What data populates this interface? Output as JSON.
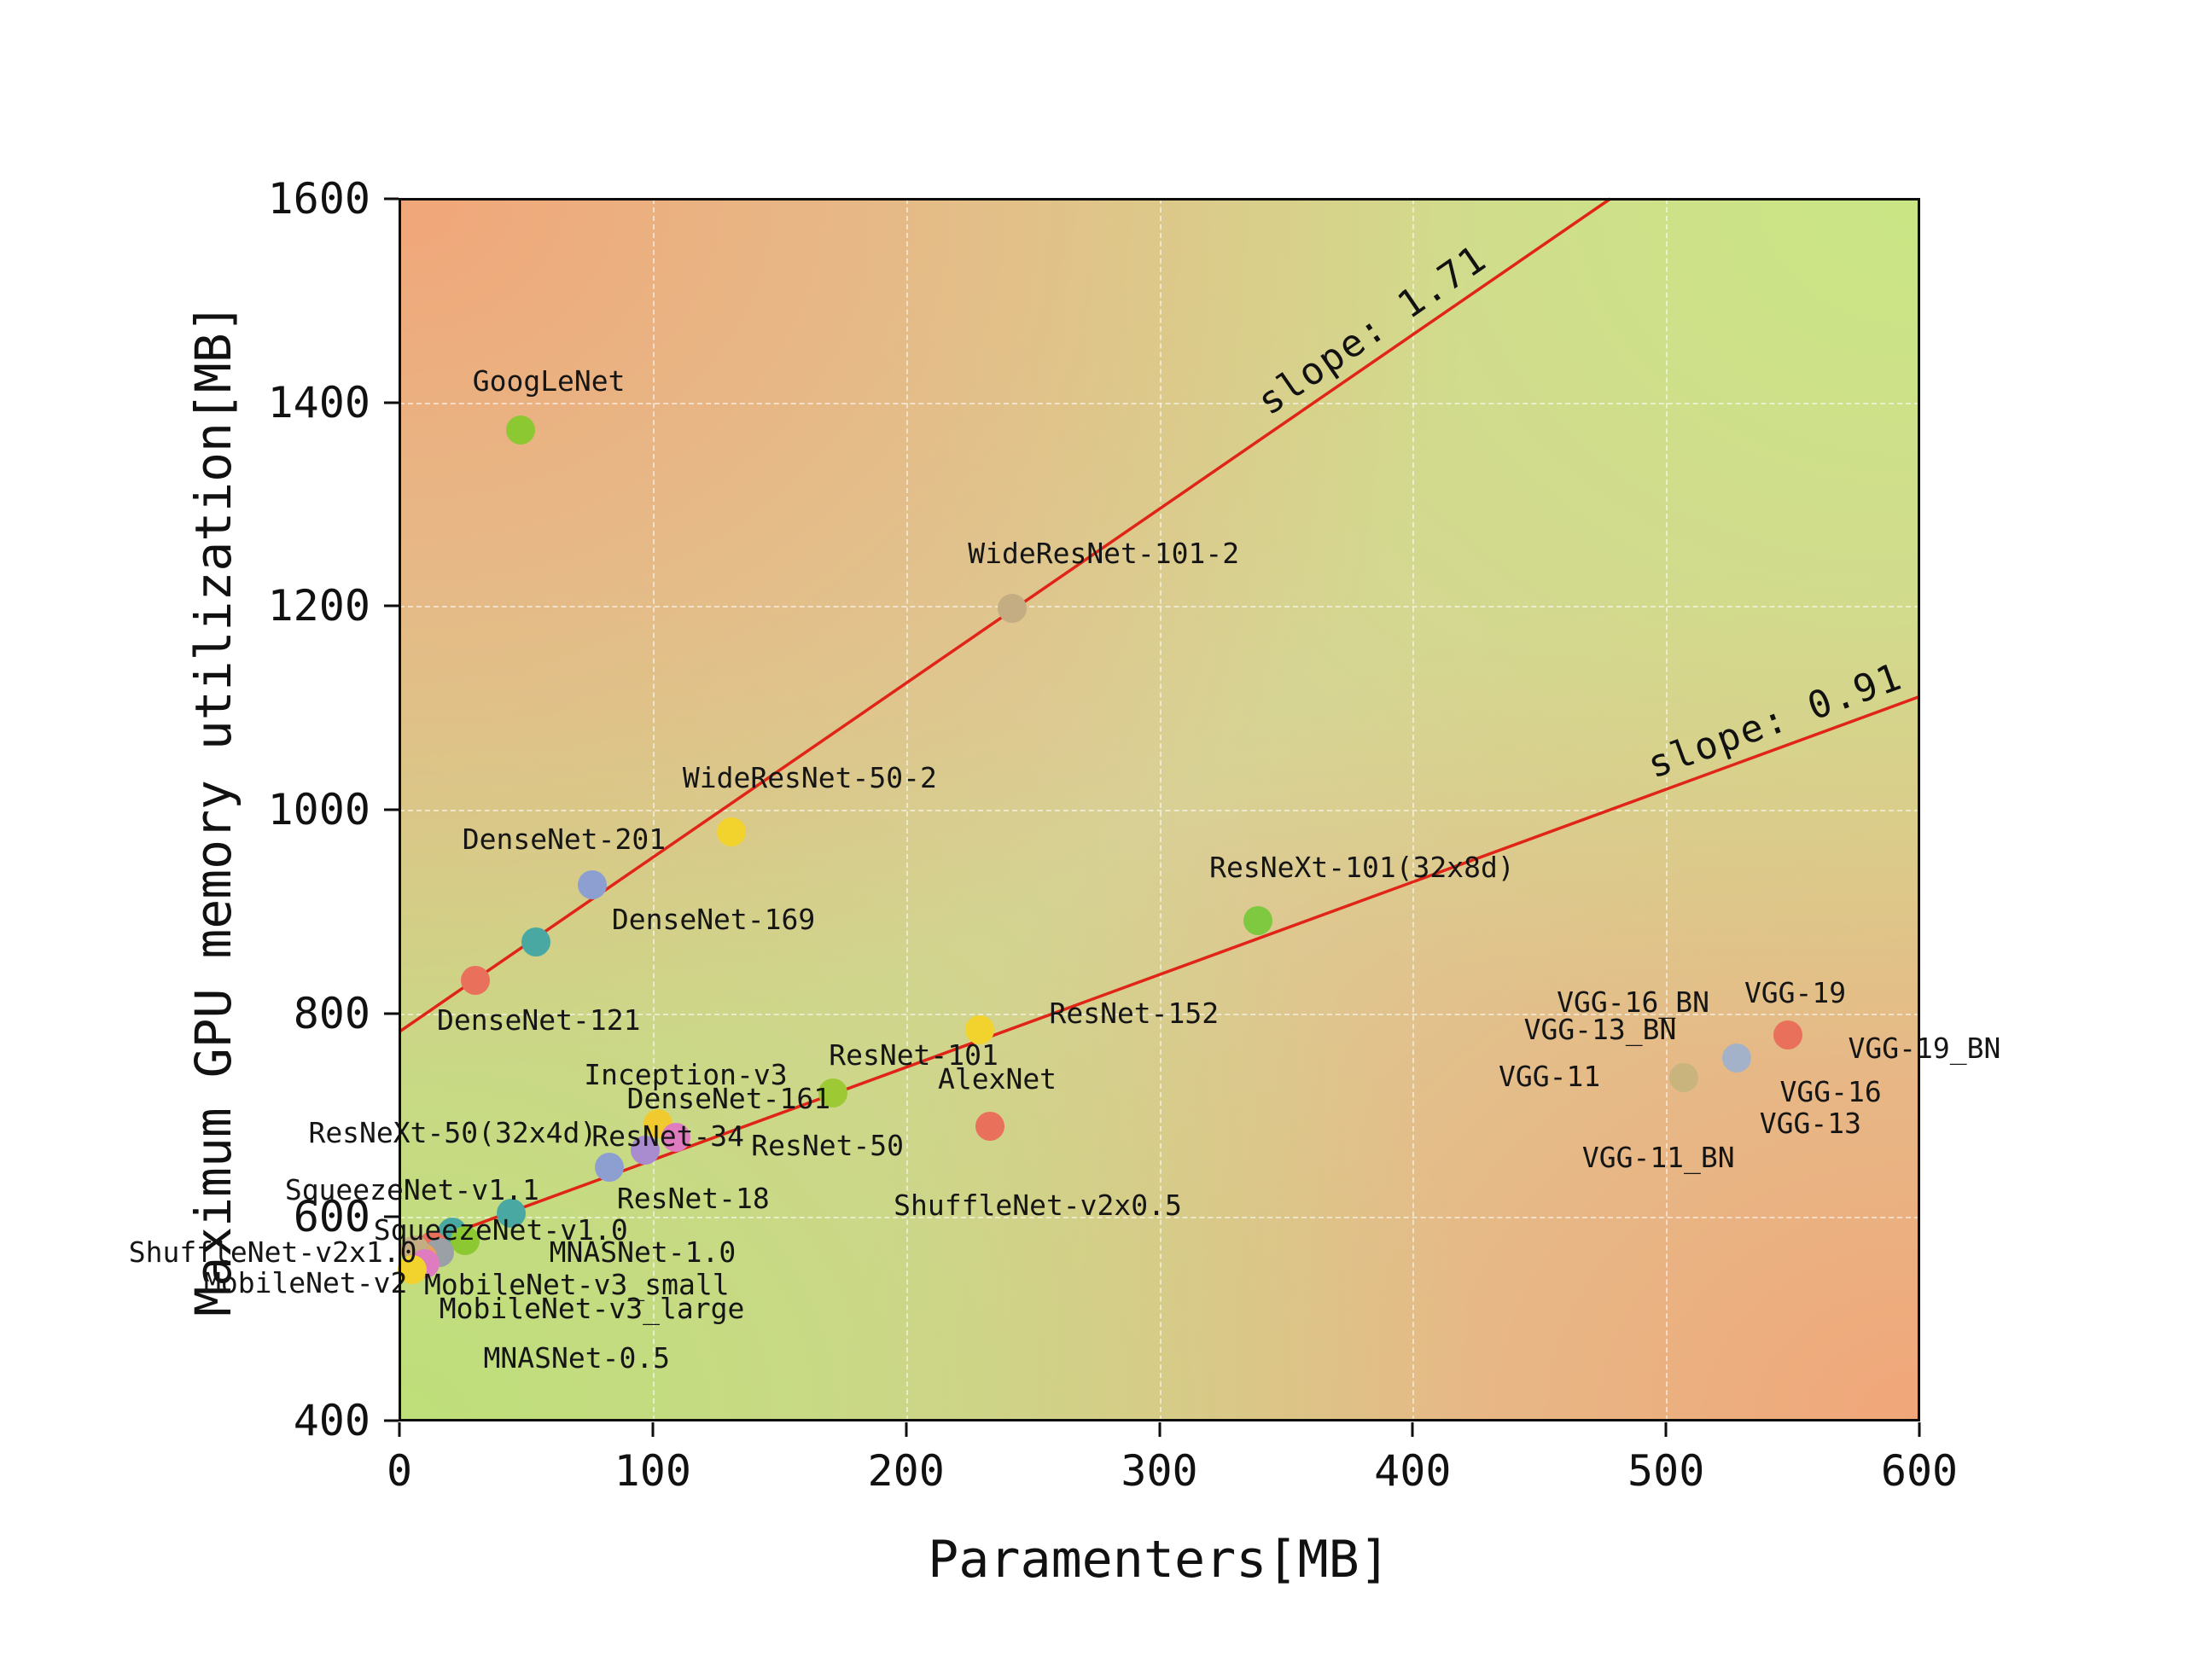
{
  "figure": {
    "background": "#ffffff"
  },
  "chart_data": {
    "type": "scatter",
    "title": "",
    "xlabel": "Paramenters[MB]",
    "ylabel": "Maximum GPU memory utilization[MB]",
    "xlim": [
      0,
      600
    ],
    "ylim": [
      400,
      1600
    ],
    "xticks": [
      0,
      100,
      200,
      300,
      400,
      500,
      600
    ],
    "yticks": [
      400,
      600,
      800,
      1000,
      1200,
      1400,
      1600
    ],
    "grid": true,
    "legend": "none",
    "background_corners": {
      "top_left": "#f2a478",
      "top_right": "#c9e783",
      "bottom_left": "#bce078",
      "bottom_right": "#f2a478",
      "center": "#d9d096"
    },
    "points": [
      {
        "name": "GoogLeNet",
        "x": 48,
        "y": 1373,
        "color": "#8cc832"
      },
      {
        "name": "WideResNet-101-2",
        "x": 242,
        "y": 1198,
        "color": "#c4ac83"
      },
      {
        "name": "WideResNet-50-2",
        "x": 131,
        "y": 978,
        "color": "#f2d32e"
      },
      {
        "name": "DenseNet-201",
        "x": 76,
        "y": 926,
        "color": "#8d9fd1"
      },
      {
        "name": "DenseNet-169",
        "x": 54,
        "y": 870,
        "color": "#49a8a1"
      },
      {
        "name": "DenseNet-121",
        "x": 30,
        "y": 832,
        "color": "#e9705a"
      },
      {
        "name": "ResNeXt-101(32x8d)",
        "x": 339,
        "y": 891,
        "color": "#7ec93f"
      },
      {
        "name": "ResNet-152",
        "x": 229,
        "y": 784,
        "color": "#f2d32e"
      },
      {
        "name": "ResNet-101",
        "x": 171,
        "y": 722,
        "color": "#9cc934"
      },
      {
        "name": "AlexNet",
        "x": 233,
        "y": 689,
        "color": "#e9705a"
      },
      {
        "name": "Inception-v3",
        "x": 102,
        "y": 692,
        "color": "#f0ca2f"
      },
      {
        "name": "DenseNet-161",
        "x": 109,
        "y": 678,
        "color": "#df7cc0"
      },
      {
        "name": "ResNet-50",
        "x": 97,
        "y": 666,
        "color": "#a98bd0"
      },
      {
        "name": "ResNet-34",
        "x": 83,
        "y": 649,
        "color": "#8d9fd1"
      },
      {
        "name": "SqueezeNet-v1.1",
        "x": 44,
        "y": 604,
        "color": "#49a8a1"
      },
      {
        "name": "MobileNet-v3_large",
        "x": 21,
        "y": 585,
        "color": "#49a8a1"
      },
      {
        "name": "MNASNet-1.0",
        "x": 26,
        "y": 577,
        "color": "#8cc832"
      },
      {
        "name": "MobileNet-v2",
        "x": 13,
        "y": 572,
        "color": "#e9705a"
      },
      {
        "name": "MobileNet-v3_small",
        "x": 16,
        "y": 565,
        "color": "#9aa0a6"
      },
      {
        "name": "ShuffleNet-v2x1.0",
        "x": 9,
        "y": 560,
        "color": "#f0a050"
      },
      {
        "name": "SqueezeNet-v1.0",
        "x": 6,
        "y": 568,
        "color": "#c4ac83"
      },
      {
        "name": "MNASNet-0.5",
        "x": 10,
        "y": 554,
        "color": "#df7cc0"
      },
      {
        "name": "ShuffleNet-v2x0.5",
        "x": 5,
        "y": 548,
        "color": "#f2d32e"
      },
      {
        "name": "VGG-11",
        "x": 507,
        "y": 737,
        "color": "#c9b47e"
      },
      {
        "name": "VGG-16",
        "x": 528,
        "y": 756,
        "color": "#a3b1c9"
      },
      {
        "name": "VGG-19",
        "x": 548,
        "y": 779,
        "color": "#e9705a"
      }
    ],
    "annotations": [
      {
        "text": "GoogLeNet",
        "x": 59,
        "y": 1421
      },
      {
        "text": "WideResNet-101-2",
        "x": 278,
        "y": 1251
      },
      {
        "text": "WideResNet-50-2",
        "x": 162,
        "y": 1031
      },
      {
        "text": "DenseNet-201",
        "x": 65,
        "y": 971
      },
      {
        "text": "DenseNet-169",
        "x": 124,
        "y": 892
      },
      {
        "text": "DenseNet-121",
        "x": 55,
        "y": 793
      },
      {
        "text": "ResNeXt-101(32x8d)",
        "x": 380,
        "y": 943
      },
      {
        "text": "ResNet-152",
        "x": 290,
        "y": 800
      },
      {
        "text": "ResNet-101",
        "x": 203,
        "y": 759
      },
      {
        "text": "Inception-v3",
        "x": 113,
        "y": 739
      },
      {
        "text": "DenseNet-161",
        "x": 130,
        "y": 716
      },
      {
        "text": "AlexNet",
        "x": 236,
        "y": 735
      },
      {
        "text": "ResNeXt-50(32x4d)",
        "x": 21,
        "y": 682
      },
      {
        "text": "ResNet-34",
        "x": 106,
        "y": 679
      },
      {
        "text": "ResNet-50",
        "x": 169,
        "y": 670
      },
      {
        "text": "ResNet-18",
        "x": 116,
        "y": 618
      },
      {
        "text": "SqueezeNet-v1.1",
        "x": 5,
        "y": 626
      },
      {
        "text": "SqueezeNet-v1.0",
        "x": 40,
        "y": 587
      },
      {
        "text": "ShuffleNet-v2x1.0",
        "x": -50,
        "y": 565
      },
      {
        "text": "MobileNet-v2",
        "x": -37,
        "y": 535
      },
      {
        "text": "MNASNet-1.0",
        "x": 96,
        "y": 565
      },
      {
        "text": "MobileNet-v3_small",
        "x": 70,
        "y": 533
      },
      {
        "text": "MobileNet-v3_large",
        "x": 76,
        "y": 510
      },
      {
        "text": "MNASNet-0.5",
        "x": 70,
        "y": 461
      },
      {
        "text": "ShuffleNet-v2x0.5",
        "x": 252,
        "y": 611
      },
      {
        "text": "VGG-16_BN",
        "x": 487,
        "y": 811
      },
      {
        "text": "VGG-19",
        "x": 551,
        "y": 820
      },
      {
        "text": "VGG-13_BN",
        "x": 474,
        "y": 784
      },
      {
        "text": "VGG-11",
        "x": 454,
        "y": 738
      },
      {
        "text": "VGG-19_BN",
        "x": 602,
        "y": 765
      },
      {
        "text": "VGG-16",
        "x": 565,
        "y": 723
      },
      {
        "text": "VGG-13",
        "x": 557,
        "y": 692
      },
      {
        "text": "VGG-11_BN",
        "x": 497,
        "y": 658
      }
    ],
    "trend_lines": [
      {
        "label": "slope: 1.71",
        "slope": 1.71,
        "color": "#e02417",
        "x1": 0,
        "y1": 782,
        "x2": 478,
        "y2": 1600,
        "label_x": 384,
        "label_y": 1471,
        "label_rotation_deg": -34.5
      },
      {
        "label": "slope: 0.91",
        "slope": 0.91,
        "color": "#e02417",
        "x1": 0,
        "y1": 565,
        "x2": 600,
        "y2": 1111,
        "label_x": 543,
        "label_y": 1087,
        "label_rotation_deg": -20
      }
    ]
  }
}
